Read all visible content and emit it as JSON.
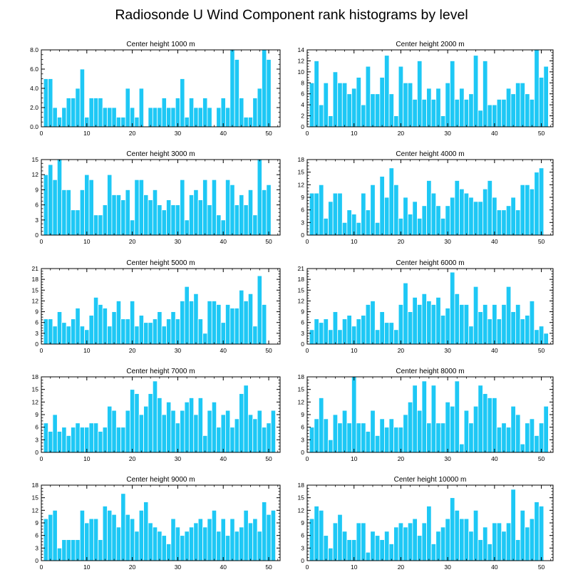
{
  "title": "Radiosonde U Wind Component rank histograms by level",
  "bar_color": "#1ec8f5",
  "chart_data": [
    {
      "type": "bar",
      "title": "Center height 1000 m",
      "ylim": [
        0,
        8
      ],
      "yticks": [
        "0.0",
        "2.0",
        "4.0",
        "6.0",
        "8.0"
      ],
      "xticks": [
        0,
        10,
        20,
        30,
        40,
        50
      ],
      "values": [
        5,
        5,
        2,
        1,
        2,
        3,
        3,
        4,
        6,
        1,
        3,
        3,
        3,
        2,
        2,
        2,
        1,
        1,
        4,
        2,
        1,
        4,
        0,
        2,
        2,
        2,
        3,
        2,
        2,
        3,
        5,
        1,
        3,
        2,
        2,
        3,
        2,
        0,
        2,
        3,
        2,
        8,
        7,
        3,
        1,
        1,
        3,
        4,
        8,
        7
      ]
    },
    {
      "type": "bar",
      "title": "Center height 2000 m",
      "ylim": [
        0,
        14
      ],
      "yticks": [
        "0",
        "2",
        "4",
        "6",
        "8",
        "10",
        "12",
        "14"
      ],
      "xticks": [
        0,
        10,
        20,
        30,
        40,
        50
      ],
      "values": [
        8,
        12,
        4,
        8,
        2,
        10,
        8,
        8,
        6,
        7,
        9,
        4,
        11,
        6,
        6,
        9,
        13,
        6,
        2,
        11,
        8,
        8,
        5,
        12,
        5,
        7,
        5,
        7,
        2,
        8,
        12,
        5,
        7,
        5,
        6,
        13,
        3,
        12,
        4,
        4,
        5,
        5,
        7,
        6,
        8,
        8,
        6,
        5,
        14,
        9,
        11
      ]
    },
    {
      "type": "bar",
      "title": "Center height 3000 m",
      "ylim": [
        0,
        15
      ],
      "yticks": [
        "0",
        "3",
        "6",
        "9",
        "12",
        "15"
      ],
      "xticks": [
        0,
        10,
        20,
        30,
        40,
        50
      ],
      "values": [
        12,
        14,
        11,
        15,
        9,
        9,
        5,
        5,
        9,
        12,
        11,
        4,
        4,
        6,
        12,
        8,
        8,
        7,
        9,
        3,
        11,
        11,
        8,
        7,
        9,
        6,
        5,
        7,
        6,
        6,
        11,
        3,
        8,
        9,
        7,
        11,
        6,
        11,
        4,
        3,
        11,
        10,
        6,
        8,
        6,
        9,
        4,
        15,
        9,
        10
      ]
    },
    {
      "type": "bar",
      "title": "Center height 4000 m",
      "ylim": [
        0,
        18
      ],
      "yticks": [
        "0",
        "3",
        "6",
        "9",
        "12",
        "15",
        "18"
      ],
      "xticks": [
        0,
        10,
        20,
        30,
        40,
        50
      ],
      "values": [
        10,
        10,
        12,
        4,
        8,
        10,
        10,
        3,
        6,
        5,
        3,
        10,
        6,
        12,
        3,
        14,
        9,
        16,
        12,
        4,
        9,
        5,
        8,
        4,
        7,
        13,
        10,
        7,
        4,
        7,
        9,
        13,
        11,
        10,
        9,
        8,
        8,
        11,
        13,
        9,
        6,
        6,
        7,
        9,
        6,
        12,
        12,
        11,
        15,
        16
      ]
    },
    {
      "type": "bar",
      "title": "Center height 5000 m",
      "ylim": [
        0,
        21
      ],
      "yticks": [
        "0",
        "3",
        "6",
        "9",
        "12",
        "15",
        "18",
        "21"
      ],
      "xticks": [
        0,
        10,
        20,
        30,
        40,
        50
      ],
      "values": [
        7,
        7,
        5,
        9,
        6,
        5,
        7,
        10,
        5,
        4,
        8,
        13,
        11,
        10,
        5,
        9,
        12,
        7,
        7,
        12,
        5,
        8,
        6,
        6,
        7,
        9,
        5,
        7,
        9,
        7,
        12,
        16,
        12,
        14,
        7,
        3,
        12,
        12,
        11,
        6,
        11,
        10,
        10,
        15,
        12,
        14,
        5,
        19,
        11
      ]
    },
    {
      "type": "bar",
      "title": "Center height 6000 m",
      "ylim": [
        0,
        21
      ],
      "yticks": [
        "0",
        "3",
        "6",
        "9",
        "12",
        "15",
        "18",
        "21"
      ],
      "xticks": [
        0,
        10,
        20,
        30,
        40,
        50
      ],
      "values": [
        4,
        7,
        6,
        7,
        4,
        9,
        4,
        7,
        8,
        5,
        7,
        8,
        11,
        12,
        4,
        9,
        6,
        6,
        4,
        11,
        17,
        9,
        13,
        11,
        14,
        12,
        11,
        13,
        8,
        10,
        20,
        14,
        11,
        11,
        5,
        16,
        9,
        11,
        7,
        11,
        7,
        11,
        16,
        9,
        11,
        7,
        8,
        12,
        4,
        5,
        3
      ]
    },
    {
      "type": "bar",
      "title": "Center height 7000 m",
      "ylim": [
        0,
        18
      ],
      "yticks": [
        "0",
        "3",
        "6",
        "9",
        "12",
        "15",
        "18"
      ],
      "xticks": [
        0,
        10,
        20,
        30,
        40,
        50
      ],
      "values": [
        7,
        5,
        9,
        5,
        6,
        4,
        6,
        7,
        6,
        6,
        7,
        7,
        5,
        6,
        11,
        10,
        6,
        6,
        10,
        15,
        14,
        9,
        11,
        14,
        17,
        13,
        9,
        12,
        10,
        7,
        10,
        12,
        13,
        9,
        13,
        4,
        10,
        12,
        6,
        9,
        10,
        6,
        8,
        14,
        16,
        9,
        8,
        10,
        6,
        7,
        10
      ]
    },
    {
      "type": "bar",
      "title": "Center height 8000 m",
      "ylim": [
        0,
        18
      ],
      "yticks": [
        "0",
        "3",
        "6",
        "9",
        "12",
        "15",
        "18"
      ],
      "xticks": [
        0,
        10,
        20,
        30,
        40,
        50
      ],
      "values": [
        6,
        8,
        13,
        8,
        3,
        9,
        7,
        10,
        7,
        18,
        7,
        7,
        5,
        10,
        4,
        8,
        6,
        8,
        6,
        6,
        9,
        12,
        16,
        10,
        17,
        7,
        16,
        7,
        7,
        12,
        11,
        17,
        2,
        10,
        7,
        11,
        16,
        14,
        13,
        13,
        6,
        7,
        6,
        11,
        9,
        2,
        7,
        8,
        4,
        7,
        11
      ]
    },
    {
      "type": "bar",
      "title": "Center height 9000 m",
      "ylim": [
        0,
        18
      ],
      "yticks": [
        "0",
        "3",
        "6",
        "9",
        "12",
        "15",
        "18"
      ],
      "xticks": [
        0,
        10,
        20,
        30,
        40,
        50
      ],
      "values": [
        10,
        11,
        12,
        3,
        5,
        5,
        5,
        5,
        12,
        9,
        10,
        10,
        5,
        13,
        12,
        11,
        8,
        16,
        11,
        10,
        7,
        12,
        14,
        9,
        8,
        7,
        6,
        4,
        10,
        8,
        6,
        7,
        8,
        9,
        10,
        8,
        10,
        12,
        7,
        10,
        6,
        10,
        7,
        8,
        12,
        9,
        10,
        7,
        14,
        11,
        12
      ]
    },
    {
      "type": "bar",
      "title": "Center height 10000 m",
      "ylim": [
        0,
        18
      ],
      "yticks": [
        "0",
        "3",
        "6",
        "9",
        "12",
        "15",
        "18"
      ],
      "xticks": [
        0,
        10,
        20,
        30,
        40,
        50
      ],
      "values": [
        10,
        13,
        12,
        6,
        3,
        9,
        11,
        7,
        5,
        5,
        9,
        9,
        2,
        7,
        6,
        5,
        7,
        4,
        8,
        9,
        8,
        9,
        10,
        6,
        9,
        13,
        4,
        7,
        8,
        10,
        15,
        12,
        10,
        10,
        7,
        12,
        5,
        8,
        4,
        9,
        9,
        7,
        9,
        17,
        5,
        12,
        8,
        10,
        14,
        13
      ]
    }
  ]
}
